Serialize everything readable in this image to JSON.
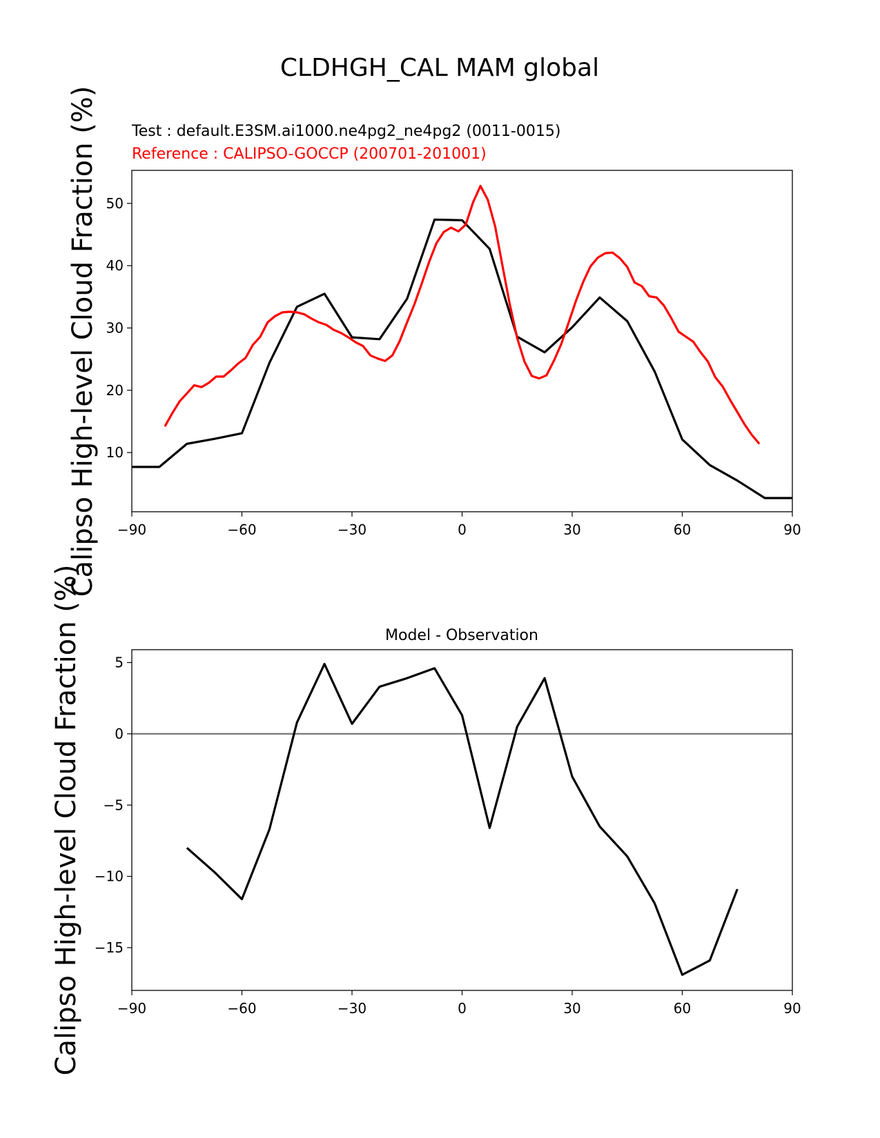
{
  "figure": {
    "title": "CLDHGH_CAL MAM global"
  },
  "chart_data": [
    {
      "type": "line",
      "test_label": "Test : default.E3SM.ai1000.ne4pg2_ne4pg2 (0011-0015)",
      "reference_label": "Reference : CALIPSO-GOCCP (200701-201001)",
      "ylabel": "Calipso High-level Cloud Fraction (%)",
      "xlim": [
        -90,
        90
      ],
      "ylim": [
        0.5,
        55.3
      ],
      "xticks": [
        -90,
        -60,
        -30,
        0,
        30,
        60,
        90
      ],
      "yticks": [
        10,
        20,
        30,
        40,
        50
      ],
      "colors": {
        "test": "#000000",
        "reference": "#ff0000"
      },
      "series": [
        {
          "role": "test",
          "x": [
            -90,
            -82.5,
            -75,
            -67.5,
            -60,
            -52.5,
            -45,
            -37.5,
            -30,
            -22.5,
            -15,
            -7.5,
            0,
            7.5,
            15,
            22.5,
            30,
            37.5,
            45,
            52.5,
            60,
            67.5,
            75,
            82.5,
            90
          ],
          "y": [
            7.7,
            7.7,
            11.4,
            12.2,
            13.1,
            24.4,
            33.4,
            35.5,
            28.5,
            28.2,
            34.7,
            47.4,
            47.3,
            42.7,
            28.6,
            26.1,
            30.1,
            34.9,
            31.1,
            23.0,
            12.1,
            8.0,
            5.5,
            2.7,
            2.7
          ]
        },
        {
          "role": "reference",
          "x": [
            -81,
            -79,
            -77,
            -75,
            -73,
            -71,
            -69,
            -67,
            -65,
            -63,
            -61,
            -59,
            -57,
            -55,
            -53,
            -51,
            -49,
            -47,
            -45,
            -43,
            -41,
            -39,
            -37,
            -35,
            -33,
            -31,
            -29,
            -27,
            -25,
            -23,
            -21,
            -19,
            -17,
            -15,
            -13,
            -11,
            -9,
            -7,
            -5,
            -3,
            -1,
            1,
            3,
            5,
            7,
            9,
            11,
            13,
            15,
            17,
            19,
            21,
            23,
            25,
            27,
            29,
            31,
            33,
            35,
            37,
            39,
            41,
            43,
            45,
            47,
            49,
            51,
            53,
            55,
            57,
            59,
            61,
            63,
            65,
            67,
            69,
            71,
            73,
            75,
            77,
            79,
            81
          ],
          "y": [
            14.2,
            16.3,
            18.2,
            19.5,
            20.8,
            20.5,
            21.2,
            22.2,
            22.2,
            23.2,
            24.3,
            25.2,
            27.3,
            28.6,
            30.9,
            31.9,
            32.5,
            32.6,
            32.5,
            32.2,
            31.5,
            30.9,
            30.5,
            29.7,
            29.2,
            28.5,
            27.7,
            27.1,
            25.6,
            25.1,
            24.7,
            25.6,
            27.9,
            30.9,
            33.8,
            37.1,
            40.6,
            43.6,
            45.4,
            46.1,
            45.5,
            46.6,
            50.2,
            52.8,
            50.6,
            46.3,
            40.0,
            33.8,
            28.4,
            24.6,
            22.3,
            21.9,
            22.4,
            24.7,
            27.4,
            30.8,
            34.3,
            37.4,
            39.9,
            41.3,
            42.0,
            42.1,
            41.2,
            39.8,
            37.3,
            36.7,
            35.1,
            34.9,
            33.6,
            31.6,
            29.4,
            28.6,
            27.8,
            26.1,
            24.6,
            22.1,
            20.6,
            18.5,
            16.5,
            14.5,
            12.8,
            11.4
          ]
        }
      ]
    },
    {
      "type": "line",
      "title": "Model - Observation",
      "ylabel": "Calipso High-level Cloud Fraction (%)",
      "xlim": [
        -90,
        90
      ],
      "ylim": [
        -18.0,
        5.9
      ],
      "xticks": [
        -90,
        -60,
        -30,
        0,
        30,
        60,
        90
      ],
      "yticks": [
        -15,
        -10,
        -5,
        0,
        5
      ],
      "zero_line_color": "#808080",
      "colors": {
        "diff": "#000000"
      },
      "series": [
        {
          "role": "diff",
          "x": [
            -75,
            -67.5,
            -60,
            -52.5,
            -45,
            -37.5,
            -30,
            -22.5,
            -15,
            -7.5,
            0,
            7.5,
            15,
            22.5,
            30,
            37.5,
            45,
            52.5,
            60,
            67.5,
            75
          ],
          "y": [
            -8.0,
            -9.7,
            -11.6,
            -6.7,
            0.8,
            4.9,
            0.7,
            3.3,
            3.9,
            4.6,
            1.3,
            -6.6,
            0.5,
            3.9,
            -3.0,
            -6.5,
            -8.6,
            -11.9,
            -16.9,
            -15.9,
            -10.9
          ]
        }
      ]
    }
  ]
}
